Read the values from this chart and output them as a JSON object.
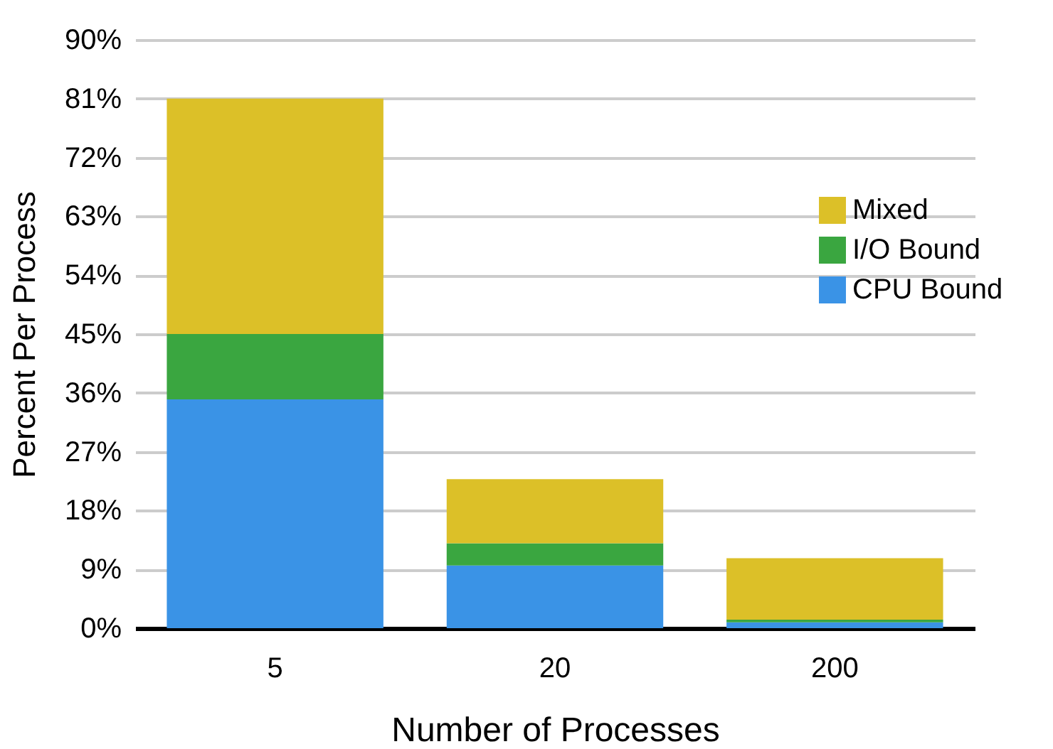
{
  "chart_data": {
    "type": "bar",
    "stacked": true,
    "xlabel": "Number of Processes",
    "ylabel": "Percent Per Process",
    "categories": [
      "5",
      "20",
      "200"
    ],
    "series": [
      {
        "name": "CPU Bound",
        "color": "#3a93e6",
        "values": [
          35,
          9.6,
          0.9
        ]
      },
      {
        "name": "I/O Bound",
        "color": "#3aa640",
        "values": [
          10,
          3.4,
          0.4
        ]
      },
      {
        "name": "Mixed",
        "color": "#dcc028",
        "values": [
          36,
          9.8,
          9.4
        ]
      }
    ],
    "ylim": [
      0,
      90
    ],
    "yticks": [
      {
        "value": 0,
        "label": "0%"
      },
      {
        "value": 9,
        "label": "9%"
      },
      {
        "value": 18,
        "label": "18%"
      },
      {
        "value": 27,
        "label": "27%"
      },
      {
        "value": 36,
        "label": "36%"
      },
      {
        "value": 45,
        "label": "45%"
      },
      {
        "value": 54,
        "label": "54%"
      },
      {
        "value": 63,
        "label": "63%"
      },
      {
        "value": 72,
        "label": "72%"
      },
      {
        "value": 81,
        "label": "81%"
      },
      {
        "value": 90,
        "label": "90%"
      }
    ],
    "grid": "y",
    "legend": "right"
  }
}
